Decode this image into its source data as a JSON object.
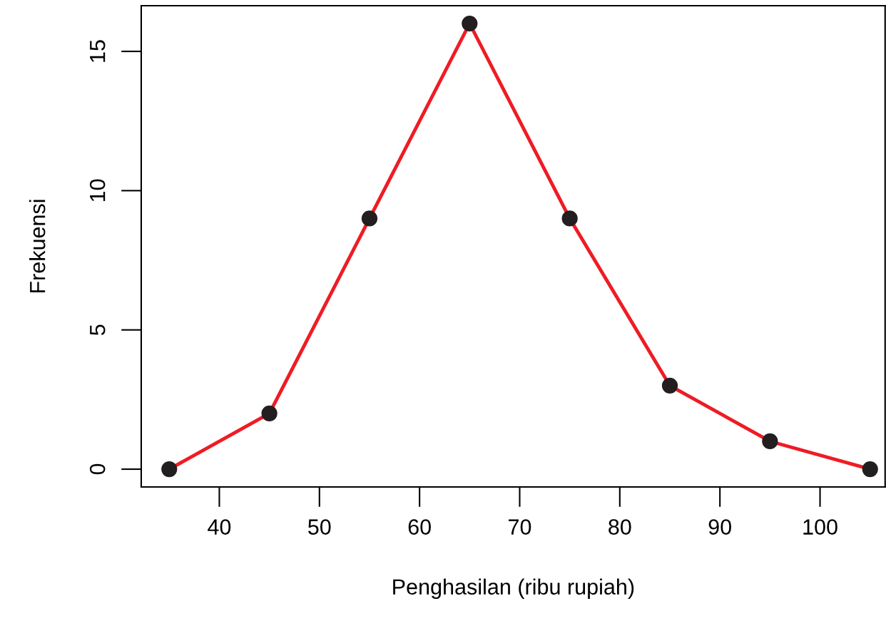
{
  "chart_data": {
    "type": "line",
    "xlabel": "Penghasilan (ribu rupiah)",
    "ylabel": "Frekuensi",
    "x": [
      35,
      45,
      55,
      65,
      75,
      85,
      95,
      105
    ],
    "series": [
      {
        "color": "#ee1c25",
        "values": [
          0,
          2,
          9,
          16,
          9,
          3,
          1,
          0
        ]
      }
    ],
    "marker": "circle",
    "line_style": "solid",
    "grid": false,
    "legend": false,
    "xlim": [
      32.2,
      106.5
    ],
    "ylim": [
      -0.64,
      16.64
    ],
    "xticks": [
      40,
      50,
      60,
      70,
      80,
      90,
      100
    ],
    "yticks": [
      0,
      5,
      10,
      15
    ]
  }
}
